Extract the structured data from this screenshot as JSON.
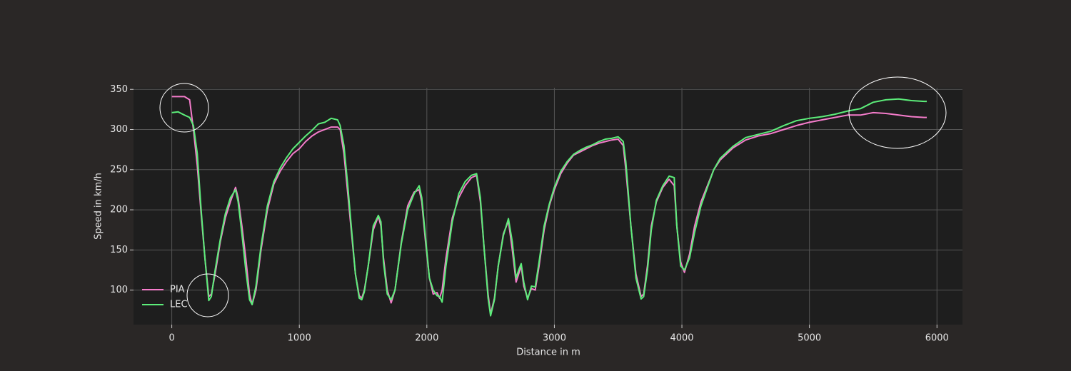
{
  "chart_data": {
    "type": "line",
    "xlabel": "Distance in m",
    "ylabel": "Speed in km/h",
    "xlim": [
      -300,
      6200
    ],
    "ylim": [
      57,
      352
    ],
    "xticks": [
      0,
      1000,
      2000,
      3000,
      4000,
      5000,
      6000
    ],
    "yticks": [
      100,
      150,
      200,
      250,
      300,
      350
    ],
    "grid": true,
    "legend": "lower left",
    "x": [
      0,
      50,
      100,
      140,
      170,
      200,
      230,
      260,
      290,
      310,
      340,
      380,
      420,
      460,
      500,
      520,
      550,
      580,
      610,
      630,
      660,
      700,
      750,
      800,
      850,
      900,
      950,
      1000,
      1050,
      1100,
      1150,
      1200,
      1250,
      1300,
      1320,
      1350,
      1380,
      1410,
      1440,
      1470,
      1490,
      1510,
      1540,
      1580,
      1620,
      1640,
      1660,
      1690,
      1720,
      1750,
      1800,
      1850,
      1900,
      1940,
      1960,
      1990,
      2020,
      2050,
      2080,
      2100,
      2120,
      2150,
      2200,
      2250,
      2300,
      2350,
      2390,
      2420,
      2450,
      2480,
      2500,
      2530,
      2560,
      2600,
      2640,
      2670,
      2700,
      2720,
      2740,
      2760,
      2790,
      2820,
      2850,
      2880,
      2920,
      2960,
      3000,
      3050,
      3100,
      3150,
      3200,
      3250,
      3300,
      3350,
      3400,
      3450,
      3500,
      3540,
      3560,
      3600,
      3640,
      3680,
      3700,
      3730,
      3760,
      3800,
      3850,
      3900,
      3940,
      3960,
      3990,
      4020,
      4060,
      4100,
      4150,
      4200,
      4250,
      4300,
      4400,
      4500,
      4600,
      4700,
      4800,
      4900,
      5000,
      5100,
      5200,
      5300,
      5400,
      5500,
      5600,
      5700,
      5800,
      5900,
      5920
    ],
    "series": [
      {
        "name": "PIA",
        "color": "#f57ccb",
        "values": [
          341,
          341,
          341,
          337,
          300,
          255,
          195,
          140,
          92,
          95,
          120,
          160,
          190,
          210,
          228,
          215,
          180,
          140,
          95,
          82,
          100,
          150,
          200,
          232,
          248,
          260,
          270,
          276,
          285,
          292,
          297,
          300,
          303,
          303,
          300,
          270,
          220,
          170,
          120,
          93,
          90,
          100,
          130,
          175,
          192,
          180,
          140,
          100,
          84,
          100,
          160,
          205,
          222,
          225,
          210,
          160,
          115,
          95,
          97,
          90,
          100,
          140,
          190,
          215,
          230,
          240,
          243,
          210,
          150,
          95,
          70,
          90,
          130,
          170,
          186,
          150,
          110,
          120,
          130,
          105,
          90,
          102,
          100,
          130,
          175,
          205,
          225,
          245,
          258,
          268,
          272,
          276,
          280,
          283,
          285,
          287,
          288,
          280,
          250,
          180,
          120,
          92,
          95,
          130,
          180,
          210,
          228,
          238,
          230,
          180,
          135,
          122,
          145,
          180,
          210,
          230,
          250,
          262,
          277,
          287,
          292,
          295,
          300,
          305,
          309,
          312,
          315,
          318,
          318,
          321,
          320,
          318,
          316,
          315,
          315
        ]
      },
      {
        "name": "LEC",
        "color": "#5ced7a",
        "values": [
          321,
          322,
          318,
          315,
          305,
          270,
          200,
          140,
          87,
          92,
          125,
          163,
          195,
          215,
          225,
          210,
          170,
          125,
          88,
          82,
          105,
          155,
          205,
          235,
          252,
          265,
          276,
          284,
          292,
          299,
          307,
          309,
          314,
          312,
          305,
          280,
          230,
          175,
          120,
          90,
          88,
          98,
          130,
          180,
          193,
          185,
          135,
          95,
          88,
          100,
          158,
          200,
          220,
          230,
          215,
          165,
          115,
          100,
          93,
          92,
          85,
          130,
          185,
          220,
          235,
          243,
          245,
          215,
          150,
          90,
          68,
          88,
          130,
          168,
          189,
          160,
          115,
          125,
          133,
          110,
          88,
          105,
          104,
          135,
          180,
          207,
          228,
          248,
          260,
          269,
          274,
          278,
          281,
          285,
          288,
          289,
          291,
          285,
          260,
          180,
          115,
          89,
          92,
          125,
          175,
          212,
          230,
          242,
          240,
          180,
          130,
          125,
          140,
          172,
          205,
          228,
          250,
          264,
          279,
          290,
          294,
          298,
          305,
          311,
          314,
          316,
          319,
          323,
          326,
          334,
          337,
          338,
          336,
          335,
          335
        ]
      }
    ]
  }
}
